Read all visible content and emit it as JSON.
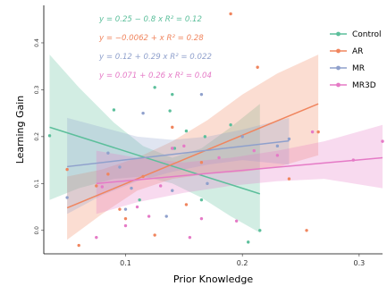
{
  "chart_data": {
    "type": "scatter",
    "title": "",
    "xlabel": "Prior Knowledge",
    "ylabel": "Learning Gain",
    "xlim": [
      0.03,
      0.32
    ],
    "ylim": [
      -0.05,
      0.48
    ],
    "xticks": [
      0.1,
      0.2,
      0.3
    ],
    "xtick_labels": [
      "0.1",
      "0.2",
      "0.3"
    ],
    "yticks": [
      0.0,
      0.1,
      0.2,
      0.3,
      0.4
    ],
    "ytick_labels": [
      "0.0",
      "0.1",
      "0.2",
      "0.3",
      "0.4"
    ],
    "grid": false,
    "legend_position": "top-right",
    "series": [
      {
        "name": "Control",
        "color": "#5cbf9b",
        "fit": {
          "x_range": [
            0.035,
            0.215
          ],
          "y_start": 0.22,
          "y_end": 0.078
        },
        "band_upper": [
          [
            0.035,
            0.375
          ],
          [
            0.06,
            0.305
          ],
          [
            0.09,
            0.23
          ],
          [
            0.115,
            0.18
          ],
          [
            0.14,
            0.155
          ],
          [
            0.165,
            0.175
          ],
          [
            0.19,
            0.22
          ],
          [
            0.215,
            0.27
          ]
        ],
        "band_lower": [
          [
            0.035,
            0.065
          ],
          [
            0.06,
            0.09
          ],
          [
            0.09,
            0.11
          ],
          [
            0.115,
            0.115
          ],
          [
            0.14,
            0.1
          ],
          [
            0.165,
            0.07
          ],
          [
            0.19,
            0.03
          ],
          [
            0.215,
            -0.005
          ]
        ],
        "points": [
          [
            0.035,
            0.202
          ],
          [
            0.09,
            0.257
          ],
          [
            0.112,
            0.065
          ],
          [
            0.125,
            0.305
          ],
          [
            0.138,
            0.255
          ],
          [
            0.14,
            0.29
          ],
          [
            0.142,
            0.175
          ],
          [
            0.152,
            0.212
          ],
          [
            0.165,
            0.065
          ],
          [
            0.168,
            0.2
          ],
          [
            0.19,
            0.225
          ],
          [
            0.205,
            -0.025
          ],
          [
            0.215,
            0.0
          ]
        ]
      },
      {
        "name": "AR",
        "color": "#f0855e",
        "fit": {
          "x_range": [
            0.05,
            0.265
          ],
          "y_start": 0.048,
          "y_end": 0.27
        },
        "band_upper": [
          [
            0.05,
            0.115
          ],
          [
            0.08,
            0.13
          ],
          [
            0.11,
            0.155
          ],
          [
            0.14,
            0.19
          ],
          [
            0.17,
            0.235
          ],
          [
            0.2,
            0.29
          ],
          [
            0.23,
            0.335
          ],
          [
            0.265,
            0.375
          ]
        ],
        "band_lower": [
          [
            0.05,
            -0.02
          ],
          [
            0.08,
            0.035
          ],
          [
            0.11,
            0.085
          ],
          [
            0.14,
            0.11
          ],
          [
            0.17,
            0.12
          ],
          [
            0.2,
            0.125
          ],
          [
            0.23,
            0.135
          ],
          [
            0.265,
            0.16
          ]
        ],
        "points": [
          [
            0.05,
            0.13
          ],
          [
            0.06,
            -0.032
          ],
          [
            0.075,
            0.095
          ],
          [
            0.085,
            0.12
          ],
          [
            0.095,
            0.045
          ],
          [
            0.1,
            0.025
          ],
          [
            0.115,
            0.115
          ],
          [
            0.125,
            -0.01
          ],
          [
            0.14,
            0.22
          ],
          [
            0.152,
            0.055
          ],
          [
            0.165,
            0.145
          ],
          [
            0.19,
            0.462
          ],
          [
            0.213,
            0.348
          ],
          [
            0.24,
            0.11
          ],
          [
            0.255,
            0.0
          ],
          [
            0.265,
            0.21
          ]
        ]
      },
      {
        "name": "MR",
        "color": "#8fa0cc",
        "fit": {
          "x_range": [
            0.05,
            0.24
          ],
          "y_start": 0.136,
          "y_end": 0.191
        },
        "band_upper": [
          [
            0.05,
            0.24
          ],
          [
            0.08,
            0.22
          ],
          [
            0.11,
            0.2
          ],
          [
            0.14,
            0.193
          ],
          [
            0.17,
            0.2
          ],
          [
            0.2,
            0.215
          ],
          [
            0.24,
            0.24
          ]
        ],
        "band_lower": [
          [
            0.05,
            0.035
          ],
          [
            0.08,
            0.075
          ],
          [
            0.11,
            0.105
          ],
          [
            0.14,
            0.125
          ],
          [
            0.17,
            0.14
          ],
          [
            0.2,
            0.15
          ],
          [
            0.24,
            0.14
          ]
        ],
        "points": [
          [
            0.05,
            0.07
          ],
          [
            0.085,
            0.165
          ],
          [
            0.095,
            0.135
          ],
          [
            0.1,
            0.045
          ],
          [
            0.105,
            0.09
          ],
          [
            0.115,
            0.25
          ],
          [
            0.135,
            0.03
          ],
          [
            0.14,
            0.175
          ],
          [
            0.14,
            0.085
          ],
          [
            0.165,
            0.29
          ],
          [
            0.17,
            0.1
          ],
          [
            0.2,
            0.2
          ],
          [
            0.23,
            0.18
          ],
          [
            0.24,
            0.195
          ]
        ]
      },
      {
        "name": "MR3D",
        "color": "#e57ac6",
        "fit": {
          "x_range": [
            0.075,
            0.32
          ],
          "y_start": 0.1,
          "y_end": 0.155
        },
        "band_upper": [
          [
            0.075,
            0.17
          ],
          [
            0.11,
            0.155
          ],
          [
            0.15,
            0.145
          ],
          [
            0.19,
            0.155
          ],
          [
            0.23,
            0.17
          ],
          [
            0.27,
            0.19
          ],
          [
            0.32,
            0.225
          ]
        ],
        "band_lower": [
          [
            0.075,
            0.035
          ],
          [
            0.11,
            0.06
          ],
          [
            0.15,
            0.08
          ],
          [
            0.19,
            0.095
          ],
          [
            0.23,
            0.105
          ],
          [
            0.27,
            0.11
          ],
          [
            0.32,
            0.09
          ]
        ],
        "points": [
          [
            0.075,
            -0.015
          ],
          [
            0.08,
            0.093
          ],
          [
            0.1,
            0.01
          ],
          [
            0.11,
            0.05
          ],
          [
            0.12,
            0.03
          ],
          [
            0.13,
            0.095
          ],
          [
            0.14,
            0.175
          ],
          [
            0.15,
            0.18
          ],
          [
            0.155,
            -0.015
          ],
          [
            0.165,
            0.025
          ],
          [
            0.18,
            0.155
          ],
          [
            0.195,
            0.02
          ],
          [
            0.21,
            0.17
          ],
          [
            0.23,
            0.16
          ],
          [
            0.26,
            0.21
          ],
          [
            0.295,
            0.15
          ],
          [
            0.32,
            0.19
          ]
        ]
      }
    ],
    "annotations": [
      {
        "text": "y = 0.25 − 0.8 x   R² = 0.12",
        "color": "#5cbf9b"
      },
      {
        "text": "y = −0.0062 + x   R² = 0.28",
        "color": "#f0855e"
      },
      {
        "text": "y = 0.12 + 0.29 x   R² = 0.022",
        "color": "#8fa0cc"
      },
      {
        "text": "y = 0.071 + 0.26 x   R² = 0.04",
        "color": "#e57ac6"
      }
    ]
  }
}
